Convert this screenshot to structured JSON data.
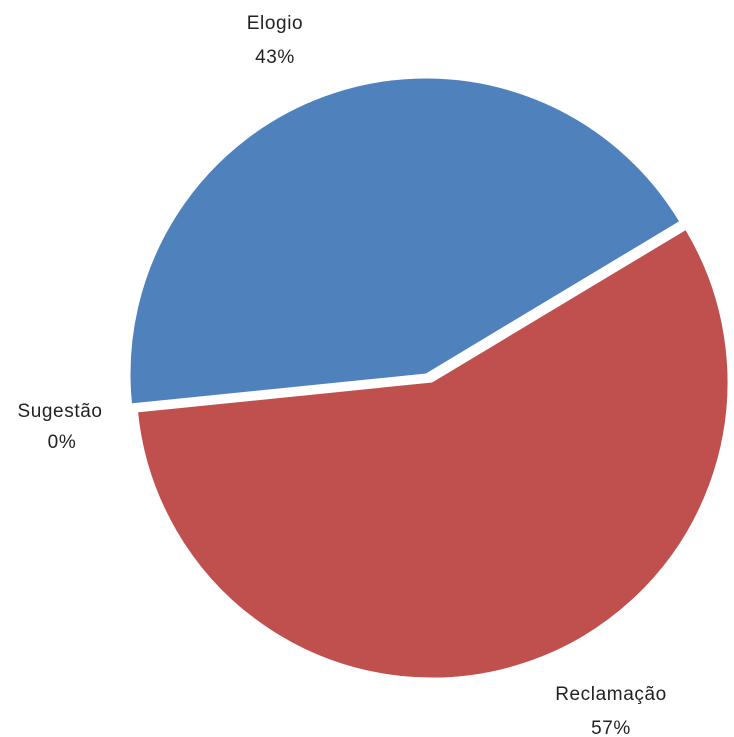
{
  "chart_data": {
    "type": "pie",
    "title": "",
    "slices": [
      {
        "name": "Elogio",
        "value": 43,
        "value_label": "43%",
        "color": "#4F81BD"
      },
      {
        "name": "Reclamação",
        "value": 57,
        "value_label": "57%",
        "color": "#C0504D"
      },
      {
        "name": "Sugestão",
        "value": 0,
        "value_label": "0%",
        "color": "#9BBB59"
      }
    ]
  }
}
